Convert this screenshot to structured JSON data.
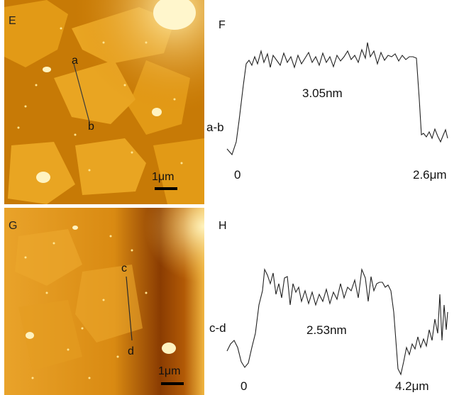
{
  "panels": {
    "E": {
      "letter": "E",
      "point_a": "a",
      "point_b": "b",
      "scale": "1μm"
    },
    "F": {
      "letter": "F",
      "profile": "a-b",
      "height": "3.05nm",
      "x_start": "0",
      "x_end": "2.6μm"
    },
    "G": {
      "letter": "G",
      "point_c": "c",
      "point_d": "d",
      "scale": "1μm"
    },
    "H": {
      "letter": "H",
      "profile": "c-d",
      "height": "2.53nm",
      "x_start": "0",
      "x_end": "4.2μm"
    }
  },
  "chart_data": [
    {
      "type": "line",
      "panel": "F",
      "xlabel": "",
      "ylabel": "a-b",
      "x_range_label": [
        "0",
        "2.6μm"
      ],
      "annotation": "3.05nm"
    },
    {
      "type": "line",
      "panel": "H",
      "xlabel": "",
      "ylabel": "c-d",
      "x_range_label": [
        "0",
        "4.2μm"
      ],
      "annotation": "2.53nm"
    }
  ]
}
